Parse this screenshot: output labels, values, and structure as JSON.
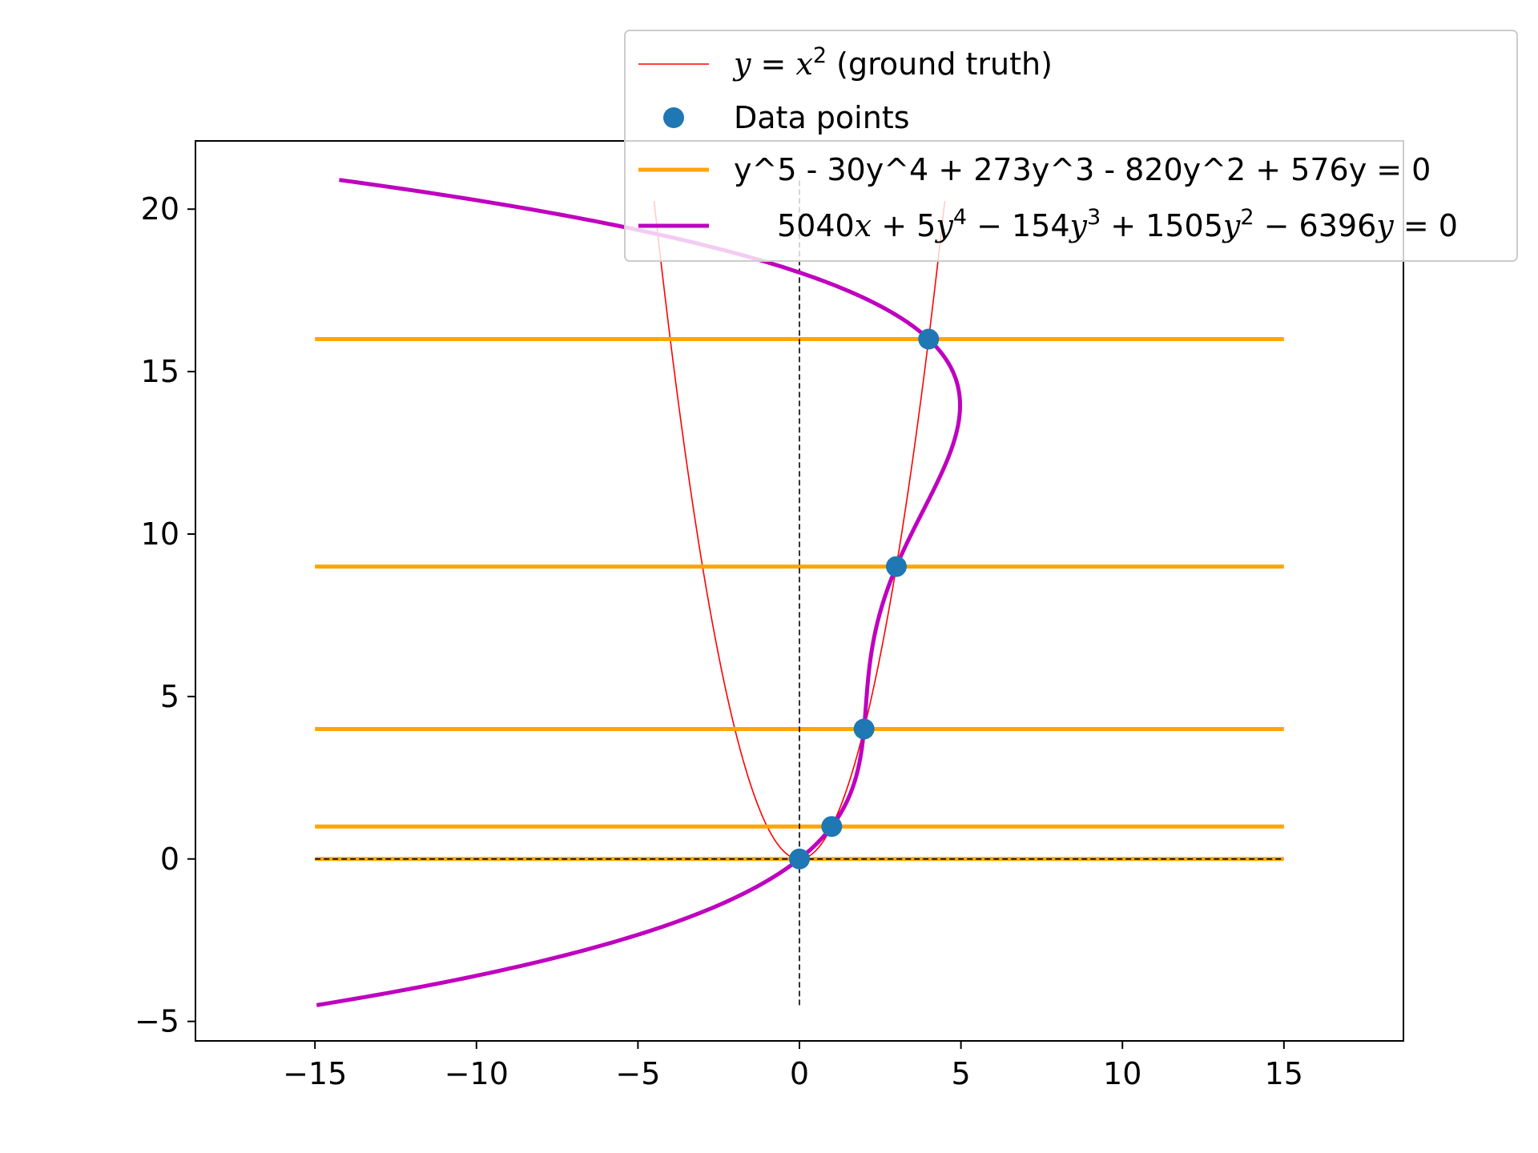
{
  "chart_data": {
    "type": "line",
    "title": "",
    "xlabel": "",
    "ylabel": "",
    "xlim": [
      -18.7,
      18.7
    ],
    "ylim": [
      -5.6,
      22.1
    ],
    "x_ticks": [
      -15,
      -10,
      -5,
      0,
      5,
      10,
      15
    ],
    "x_tick_labels": [
      "−15",
      "−10",
      "−5",
      "0",
      "5",
      "10",
      "15"
    ],
    "y_ticks": [
      -5,
      0,
      5,
      10,
      15,
      20
    ],
    "y_tick_labels": [
      "−5",
      "0",
      "5",
      "10",
      "15",
      "20"
    ],
    "grid": false,
    "legend_position": "top-right",
    "colors": {
      "ground_truth": "#ff0000",
      "data_points": "#1f77b4",
      "horizontal_lines": "#ffa500",
      "implicit_curve": "#bf00bf",
      "axis_guides": "#000000"
    },
    "series": [
      {
        "name": "y = x² (ground truth)",
        "type": "line",
        "x_range": [
          -4.5,
          4.5
        ],
        "formula": "y = x^2"
      },
      {
        "name": "Data points",
        "type": "scatter",
        "x": [
          0,
          1,
          2,
          3,
          4
        ],
        "y": [
          0,
          1,
          4,
          9,
          16
        ]
      },
      {
        "name": "y^5 - 30y^4 + 273y^3 - 820y^2 + 576y = 0",
        "type": "hlines",
        "y": [
          0,
          1,
          4,
          9,
          16
        ],
        "x_range": [
          -15,
          15
        ]
      },
      {
        "name": "5040x + 5y⁴ − 154y³ + 1505y² − 6396y = 0",
        "type": "line",
        "y_range": [
          -4.5,
          20.9
        ],
        "formula": "x = -(5y^4 - 154y^3 + 1505y^2 - 6396y)/5040"
      },
      {
        "name": "",
        "type": "dashed-guides",
        "vertical_x": 0,
        "vertical_y_range": [
          -4.5,
          21
        ],
        "horizontal_y": 0,
        "horizontal_x_range": [
          -15,
          15
        ]
      }
    ],
    "legend": [
      {
        "main": "y",
        "op": " = ",
        "var": "x",
        "sup": "2",
        "rest": " (ground truth)"
      },
      {
        "text": "Data points"
      },
      {
        "text": "y^5 - 30y^4 + 273y^3 - 820y^2 + 576y = 0"
      },
      {
        "parts": [
          {
            "t": "5040",
            "i": false
          },
          {
            "t": "x",
            "i": true
          },
          {
            "t": " + 5",
            "i": false
          },
          {
            "t": "y",
            "i": true
          },
          {
            "t": "4",
            "sup": true
          },
          {
            "t": " − 154",
            "i": false
          },
          {
            "t": "y",
            "i": true
          },
          {
            "t": "3",
            "sup": true
          },
          {
            "t": " + 1505",
            "i": false
          },
          {
            "t": "y",
            "i": true
          },
          {
            "t": "2",
            "sup": true
          },
          {
            "t": " − 6396",
            "i": false
          },
          {
            "t": "y",
            "i": true
          },
          {
            "t": " = 0",
            "i": false
          }
        ]
      }
    ]
  }
}
